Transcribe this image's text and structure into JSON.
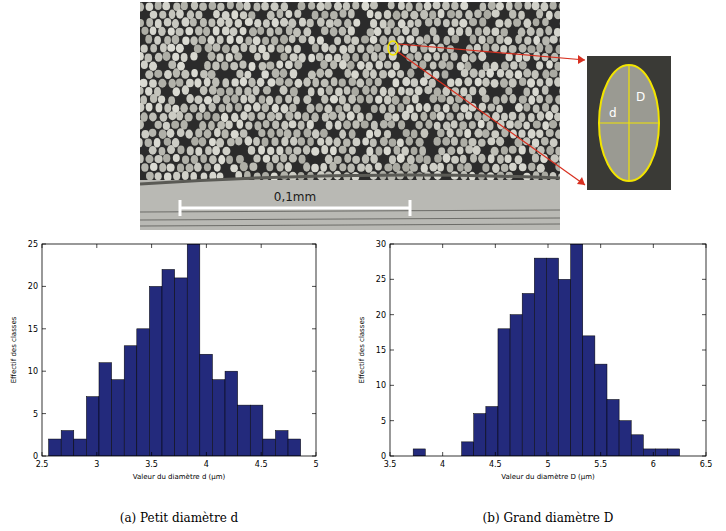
{
  "figure": {
    "scale_bar": "0,1mm",
    "inset_labels": {
      "small": "d",
      "large": "D"
    }
  },
  "chart_data": [
    {
      "type": "histogram",
      "title": "(a) Petit diamètre d",
      "x_label": "Valeur du diamètre d (µm)",
      "y_label": "Effectif des classes",
      "bins": [
        2.56,
        2.675,
        2.79,
        2.905,
        3.02,
        3.135,
        3.25,
        3.365,
        3.48,
        3.595,
        3.71,
        3.825,
        3.94,
        4.055,
        4.17,
        4.285,
        4.4,
        4.515,
        4.63,
        4.745,
        4.86
      ],
      "values": [
        2,
        3,
        2,
        7,
        11,
        9,
        13,
        15,
        20,
        22,
        21,
        25,
        12,
        9,
        10,
        6,
        6,
        2,
        3,
        2
      ],
      "color": "#232a7c",
      "xlim": [
        2.5,
        5
      ],
      "xticks": [
        2.5,
        3,
        3.5,
        4,
        4.5,
        5
      ],
      "ylim": [
        0,
        25
      ],
      "yticks": [
        0,
        5,
        10,
        15,
        20,
        25
      ]
    },
    {
      "type": "histogram",
      "title": "(b) Grand diamètre D",
      "x_label": "Valeur du diamètre D (µm)",
      "y_label": "Effectif des classes",
      "bins": [
        3.72,
        3.835,
        3.95,
        4.065,
        4.18,
        4.295,
        4.41,
        4.525,
        4.64,
        4.755,
        4.87,
        4.985,
        5.1,
        5.215,
        5.33,
        5.445,
        5.56,
        5.675,
        5.79,
        5.905,
        6.02,
        6.135,
        6.25
      ],
      "values": [
        1,
        0,
        0,
        0,
        2,
        6,
        7,
        18,
        20,
        23,
        28,
        28,
        25,
        30,
        17,
        13,
        8,
        5,
        3,
        1,
        1,
        1
      ],
      "color": "#232a7c",
      "xlim": [
        3.5,
        6.5
      ],
      "xticks": [
        3.5,
        4,
        4.5,
        5,
        5.5,
        6,
        6.5
      ],
      "ylim": [
        0,
        30
      ],
      "yticks": [
        0,
        5,
        10,
        15,
        20,
        25,
        30
      ]
    }
  ]
}
